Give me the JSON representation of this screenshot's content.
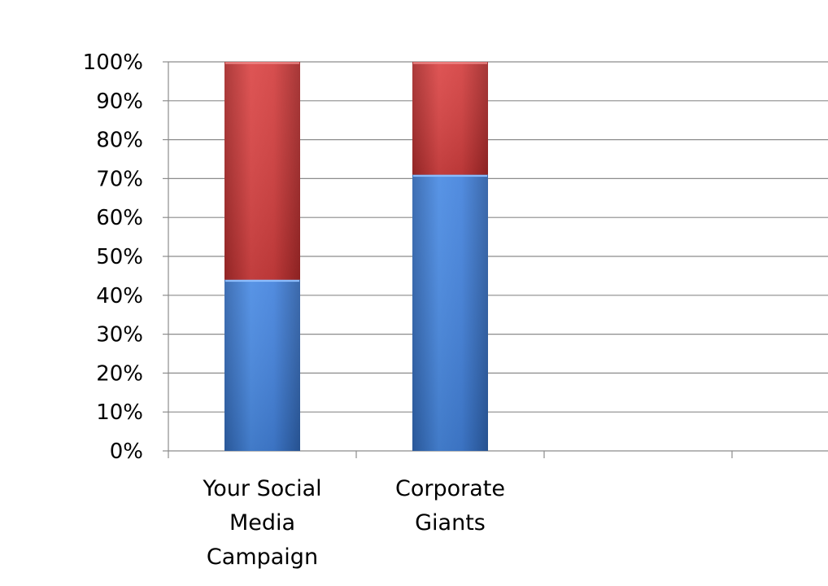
{
  "chart_data": {
    "type": "bar",
    "stacked": true,
    "percent": true,
    "categories": [
      [
        "Your Social",
        "Media",
        "Campaign"
      ],
      [
        "Corporate",
        "Giants"
      ],
      [],
      []
    ],
    "series": [
      {
        "color": "#3f7fd6",
        "values": [
          44,
          71,
          null,
          null
        ]
      },
      {
        "color": "#d23f3f",
        "values": [
          56,
          29,
          null,
          null
        ]
      }
    ],
    "y_ticks": [
      "0%",
      "10%",
      "20%",
      "30%",
      "40%",
      "50%",
      "60%",
      "70%",
      "80%",
      "90%",
      "100%"
    ],
    "ylim": [
      0,
      100
    ],
    "title": "",
    "xlabel": "",
    "ylabel": "",
    "grid": true,
    "legend": "none"
  }
}
